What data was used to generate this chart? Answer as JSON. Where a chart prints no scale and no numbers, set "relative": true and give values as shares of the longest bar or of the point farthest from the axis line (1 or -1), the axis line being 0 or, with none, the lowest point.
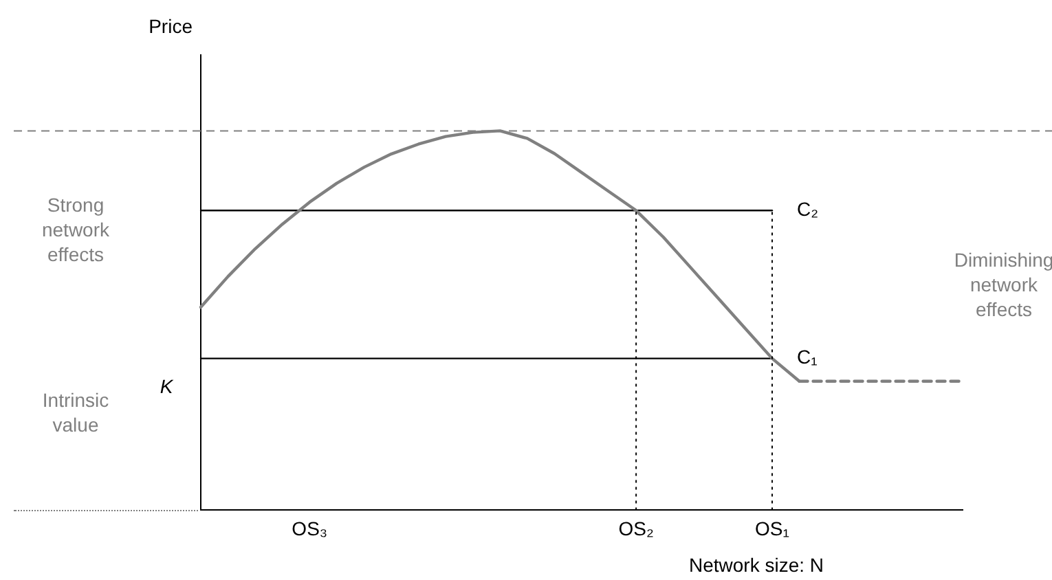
{
  "chart_data": {
    "type": "line",
    "relative": true,
    "ylabel": "Price",
    "xlabel": "Network size: N",
    "categories": [
      null,
      null,
      null,
      null,
      "OS₃",
      null,
      null,
      null,
      null,
      null,
      null,
      null,
      null,
      null,
      null,
      null,
      "OS₂",
      null,
      null,
      null,
      null,
      "OS₁",
      null,
      null,
      null,
      null,
      null,
      null,
      null
    ],
    "series": [
      {
        "color": "#808080",
        "values": [
          0.535,
          0.616,
          0.689,
          0.754,
          0.812,
          0.862,
          0.904,
          0.939,
          0.965,
          0.985,
          0.996,
          1,
          0.98,
          0.94,
          0.89,
          0.84,
          0.79,
          0.72,
          0.64,
          0.56,
          0.48,
          0.4,
          0.34,
          null,
          null,
          null,
          null,
          null,
          null
        ]
      },
      {
        "name": "C₂",
        "color": "#000000",
        "values": [
          0.79,
          0.79,
          0.79,
          0.79,
          0.79,
          0.79,
          0.79,
          0.79,
          0.79,
          0.79,
          0.79,
          0.79,
          0.79,
          0.79,
          0.79,
          0.79,
          0.79,
          0.79,
          0.79,
          0.79,
          0.79,
          0.79,
          null,
          null,
          null,
          null,
          null,
          null,
          null
        ]
      },
      {
        "name": "C₁",
        "color": "#000000",
        "values": [
          0.4,
          0.4,
          0.4,
          0.4,
          0.4,
          0.4,
          0.4,
          0.4,
          0.4,
          0.4,
          0.4,
          0.4,
          0.4,
          0.4,
          0.4,
          0.4,
          0.4,
          0.4,
          0.4,
          0.4,
          0.4,
          0.4,
          null,
          null,
          null,
          null,
          null,
          null,
          null
        ]
      },
      {
        "color": "#808080",
        "line_style": "dashed",
        "values": [
          null,
          null,
          null,
          null,
          null,
          null,
          null,
          null,
          null,
          null,
          null,
          null,
          null,
          null,
          null,
          null,
          null,
          null,
          null,
          null,
          null,
          null,
          0.34,
          0.34,
          0.34,
          0.34,
          0.34,
          0.34,
          0.34
        ]
      }
    ],
    "ref_lines": [
      {
        "axis": "y",
        "value": 1,
        "line_style": "dashed",
        "color": "#808080"
      },
      {
        "axis": "x",
        "value": "OS₂",
        "line_style": "dotted",
        "color": "#000000"
      },
      {
        "axis": "x",
        "value": "OS₁",
        "line_style": "dotted",
        "color": "#000000"
      }
    ],
    "annotations": [
      "Strong network effects",
      "Intrinsic value",
      "K",
      "Diminishing network effects"
    ],
    "grid": false,
    "legend": false,
    "marker": "none",
    "line_style": "solid"
  }
}
